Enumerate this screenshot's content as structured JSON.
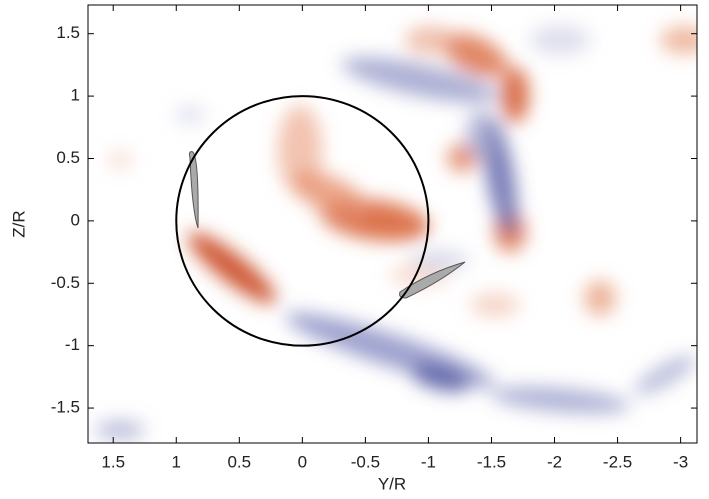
{
  "chart_data": {
    "type": "contour",
    "x_label": "Y/R",
    "y_label": "Z/R",
    "xlim": [
      1.7,
      -3.13
    ],
    "ylim": [
      -1.78,
      1.73
    ],
    "xticks": [
      1.5,
      1,
      0.5,
      0,
      -0.5,
      -1,
      -1.5,
      -2,
      -2.5,
      -3
    ],
    "yticks": [
      -1.5,
      -1,
      -0.5,
      0,
      0.5,
      1,
      1.5
    ],
    "circle": {
      "x": 0,
      "y": 0,
      "r": 1
    }
  }
}
